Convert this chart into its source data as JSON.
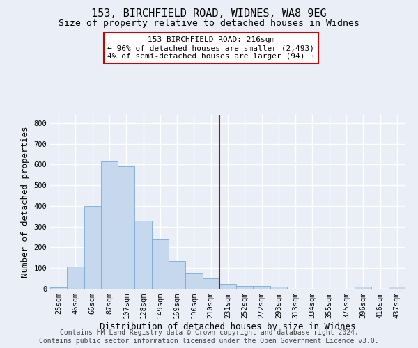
{
  "title": "153, BIRCHFIELD ROAD, WIDNES, WA8 9EG",
  "subtitle": "Size of property relative to detached houses in Widnes",
  "xlabel": "Distribution of detached houses by size in Widnes",
  "ylabel": "Number of detached properties",
  "categories": [
    "25sqm",
    "46sqm",
    "66sqm",
    "87sqm",
    "107sqm",
    "128sqm",
    "149sqm",
    "169sqm",
    "190sqm",
    "210sqm",
    "231sqm",
    "252sqm",
    "272sqm",
    "293sqm",
    "313sqm",
    "334sqm",
    "355sqm",
    "375sqm",
    "396sqm",
    "416sqm",
    "437sqm"
  ],
  "values": [
    8,
    107,
    400,
    615,
    590,
    330,
    237,
    135,
    77,
    52,
    23,
    15,
    15,
    9,
    0,
    0,
    0,
    0,
    10,
    0,
    10
  ],
  "bar_color": "#c5d8ee",
  "bar_edge_color": "#7baad4",
  "vline_index": 9.5,
  "vline_color": "#cc0000",
  "annotation_line1": "153 BIRCHFIELD ROAD: 216sqm",
  "annotation_line2": "← 96% of detached houses are smaller (2,493)",
  "annotation_line3": "4% of semi-detached houses are larger (94) →",
  "annotation_box_color": "#ffffff",
  "annotation_box_edge": "#cc0000",
  "ylim": [
    0,
    840
  ],
  "yticks": [
    0,
    100,
    200,
    300,
    400,
    500,
    600,
    700,
    800
  ],
  "footer": "Contains HM Land Registry data © Crown copyright and database right 2024.\nContains public sector information licensed under the Open Government Licence v3.0.",
  "bg_color": "#eaeff7",
  "plot_bg_color": "#eaeff7",
  "grid_color": "#ffffff",
  "title_fontsize": 11,
  "subtitle_fontsize": 9.5,
  "axis_label_fontsize": 9,
  "tick_fontsize": 7.5,
  "footer_fontsize": 7,
  "annotation_fontsize": 8
}
